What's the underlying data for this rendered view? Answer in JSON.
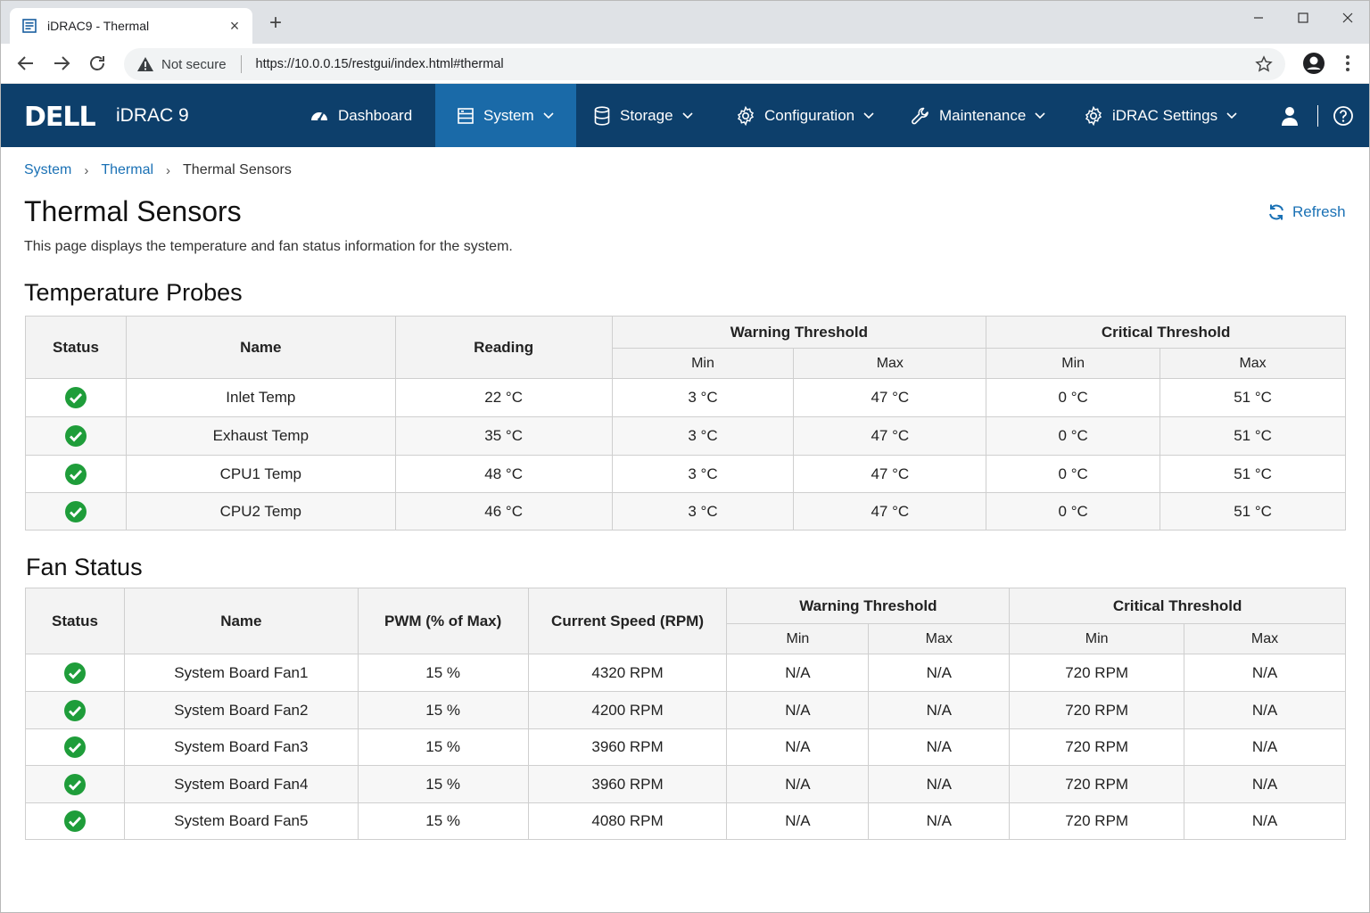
{
  "browser": {
    "tab_title": "iDRAC9 - Thermal",
    "security_label": "Not secure",
    "url": "https://10.0.0.15/restgui/index.html#thermal"
  },
  "nav": {
    "logo": "DELL",
    "product": "iDRAC 9",
    "items": [
      {
        "label": "Dashboard",
        "icon": "gauge-icon"
      },
      {
        "label": "System",
        "icon": "server-icon"
      },
      {
        "label": "Storage",
        "icon": "database-icon"
      },
      {
        "label": "Configuration",
        "icon": "gear-icon"
      },
      {
        "label": "Maintenance",
        "icon": "wrench-icon"
      },
      {
        "label": "iDRAC Settings",
        "icon": "gear-icon"
      }
    ],
    "active": "System"
  },
  "breadcrumb": [
    "System",
    "Thermal",
    "Thermal Sensors"
  ],
  "page": {
    "title": "Thermal Sensors",
    "description": "This page displays the temperature and fan status information for the system.",
    "refresh_label": "Refresh"
  },
  "temperature": {
    "heading": "Temperature Probes",
    "columns": {
      "status": "Status",
      "name": "Name",
      "reading": "Reading",
      "warning": "Warning Threshold",
      "critical": "Critical Threshold",
      "min": "Min",
      "max": "Max"
    },
    "rows": [
      {
        "name": "Inlet Temp",
        "reading": "22 °C",
        "warn_min": "3 °C",
        "warn_max": "47 °C",
        "crit_min": "0 °C",
        "crit_max": "51 °C"
      },
      {
        "name": "Exhaust Temp",
        "reading": "35 °C",
        "warn_min": "3 °C",
        "warn_max": "47 °C",
        "crit_min": "0 °C",
        "crit_max": "51 °C"
      },
      {
        "name": "CPU1 Temp",
        "reading": "48 °C",
        "warn_min": "3 °C",
        "warn_max": "47 °C",
        "crit_min": "0 °C",
        "crit_max": "51 °C"
      },
      {
        "name": "CPU2 Temp",
        "reading": "46 °C",
        "warn_min": "3 °C",
        "warn_max": "47 °C",
        "crit_min": "0 °C",
        "crit_max": "51 °C"
      }
    ]
  },
  "fans": {
    "heading": "Fan Status",
    "columns": {
      "status": "Status",
      "name": "Name",
      "pwm": "PWM (% of Max)",
      "speed": "Current Speed (RPM)",
      "warning": "Warning Threshold",
      "critical": "Critical Threshold",
      "min": "Min",
      "max": "Max"
    },
    "rows": [
      {
        "name": "System Board Fan1",
        "pwm": "15 %",
        "speed": "4320 RPM",
        "warn_min": "N/A",
        "warn_max": "N/A",
        "crit_min": "720 RPM",
        "crit_max": "N/A"
      },
      {
        "name": "System Board Fan2",
        "pwm": "15 %",
        "speed": "4200 RPM",
        "warn_min": "N/A",
        "warn_max": "N/A",
        "crit_min": "720 RPM",
        "crit_max": "N/A"
      },
      {
        "name": "System Board Fan3",
        "pwm": "15 %",
        "speed": "3960 RPM",
        "warn_min": "N/A",
        "warn_max": "N/A",
        "crit_min": "720 RPM",
        "crit_max": "N/A"
      },
      {
        "name": "System Board Fan4",
        "pwm": "15 %",
        "speed": "3960 RPM",
        "warn_min": "N/A",
        "warn_max": "N/A",
        "crit_min": "720 RPM",
        "crit_max": "N/A"
      },
      {
        "name": "System Board Fan5",
        "pwm": "15 %",
        "speed": "4080 RPM",
        "warn_min": "N/A",
        "warn_max": "N/A",
        "crit_min": "720 RPM",
        "crit_max": "N/A"
      }
    ]
  },
  "colors": {
    "nav_bg": "#0d3f6b",
    "nav_active": "#1a6aa8",
    "link": "#1a71b5",
    "ok": "#1f9d3a"
  }
}
